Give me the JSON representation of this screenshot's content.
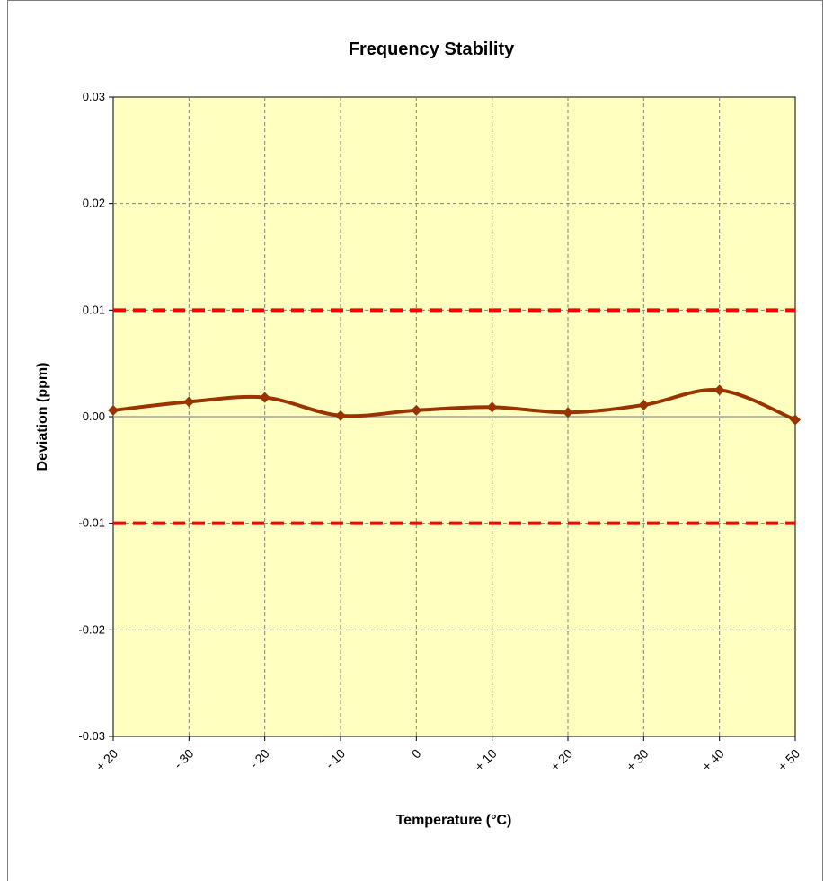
{
  "chart_data": {
    "type": "line",
    "title": "Frequency Stability",
    "xlabel": "Temperature (°C)",
    "ylabel": "Deviation (ppm)",
    "categories": [
      "+ 20",
      "- 30",
      "- 20",
      "- 10",
      "0",
      "+ 10",
      "+ 20",
      "+ 30",
      "+ 40",
      "+ 50"
    ],
    "y_ticks": [
      "0.03",
      "0.02",
      "0.01",
      "0.00",
      "-0.01",
      "-0.02",
      "-0.03"
    ],
    "ylim": [
      -0.03,
      0.03
    ],
    "grid": true,
    "series": [
      {
        "values": [
          0.0006,
          0.0014,
          0.0018,
          0.0001,
          0.0006,
          0.0009,
          0.0004,
          0.0011,
          0.0025,
          -0.0003
        ],
        "color": "#993300"
      }
    ],
    "limit_lines": [
      {
        "value": 0.01,
        "color": "#ff0000"
      },
      {
        "value": -0.01,
        "color": "#ff0000"
      }
    ],
    "plot_background": "#ffffc0"
  }
}
